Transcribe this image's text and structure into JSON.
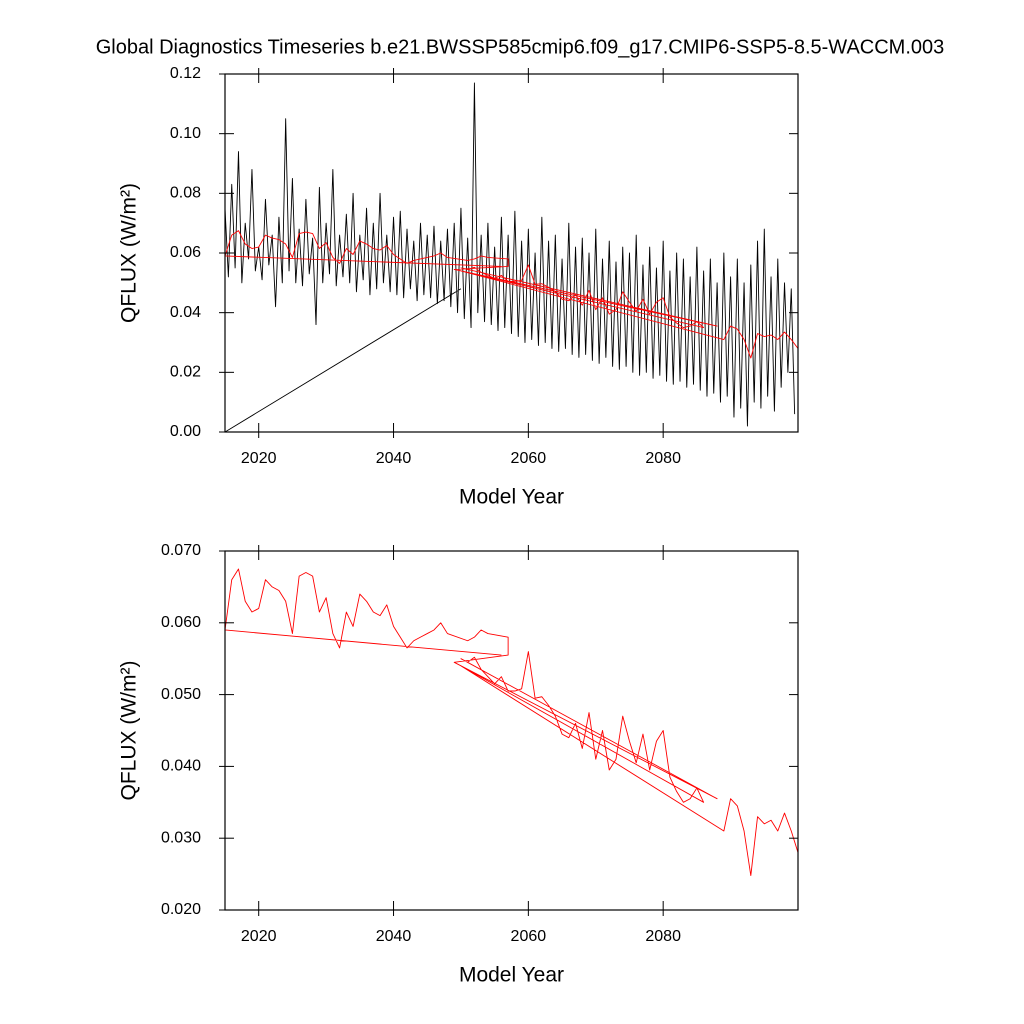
{
  "chart_data": [
    {
      "type": "line",
      "title": "Global Diagnostics Timeseries b.e21.BWSSP585cmip6.f09_g17.CMIP6-SSP5-8.5-WACCM.003",
      "y_label": "QFLUX (W/m²)",
      "x_label": "Model Year",
      "xlim": [
        2015,
        2100
      ],
      "xticks": [
        2020,
        2040,
        2060,
        2080
      ],
      "ylim": [
        0,
        0.12
      ],
      "yticks": [
        {
          "value": 0,
          "label": "0.00"
        },
        {
          "value": 0.02,
          "label": "0.02"
        },
        {
          "value": 0.04,
          "label": "0.04"
        },
        {
          "value": 0.06,
          "label": "0.06"
        },
        {
          "value": 0.08,
          "label": "0.08"
        },
        {
          "value": 0.1,
          "label": "0.10"
        },
        {
          "value": 0.12,
          "label": "0.12"
        }
      ],
      "series": [
        {
          "color": "#000000",
          "x": [
            2015,
            2050,
            2050,
            2015.0,
            2015.5,
            2016.0,
            2016.5,
            2017.0,
            2017.5,
            2018.0,
            2018.5,
            2019.0,
            2019.5,
            2020.0,
            2020.5,
            2021.0,
            2021.5,
            2022.0,
            2022.5,
            2023.0,
            2023.5,
            2024.0,
            2024.5,
            2025.0,
            2025.5,
            2026.0,
            2026.5,
            2027.0,
            2027.5,
            2028.0,
            2028.5,
            2029.0,
            2029.5,
            2030.0,
            2030.5,
            2031.0,
            2031.5,
            2032.0,
            2032.5,
            2033.0,
            2033.5,
            2034.0,
            2034.5,
            2035.0,
            2035.5,
            2036.0,
            2036.5,
            2037.0,
            2037.5,
            2038.0,
            2038.5,
            2039.0,
            2039.5,
            2040.0,
            2040.5,
            2041.0,
            2041.5,
            2042.0,
            2042.5,
            2043.0,
            2043.5,
            2044.0,
            2044.5,
            2045.0,
            2045.5,
            2046.0,
            2046.5,
            2047.0,
            2047.5,
            2048.0,
            2048.5,
            2049.0,
            2049.5,
            2050.0,
            2050.5,
            2051.0,
            2051.5,
            2052.0,
            2052.5,
            2053.0,
            2053.5,
            2054.0,
            2054.5,
            2055.0,
            2055.5,
            2056.0,
            2056.5,
            2057.0,
            2057.5,
            2058.0,
            2058.5,
            2059.0,
            2059.5,
            2060.0,
            2060.5,
            2061.0,
            2061.5,
            2062.0,
            2062.5,
            2063.0,
            2063.5,
            2064.0,
            2064.5,
            2065.0,
            2065.5,
            2066.0,
            2066.5,
            2067.0,
            2067.5,
            2068.0,
            2068.5,
            2069.0,
            2069.5,
            2070.0,
            2070.5,
            2071.0,
            2071.5,
            2072.0,
            2072.5,
            2073.0,
            2073.5,
            2074.0,
            2074.5,
            2075.0,
            2075.5,
            2076.0,
            2076.5,
            2077.0,
            2077.5,
            2078.0,
            2078.5,
            2079.0,
            2079.5,
            2080.0,
            2080.5,
            2081.0,
            2081.5,
            2082.0,
            2082.5,
            2083.0,
            2083.5,
            2084.0,
            2084.5,
            2085.0,
            2085.5,
            2086.0,
            2086.5,
            2087.0,
            2087.5,
            2088.0,
            2088.5,
            2089.0,
            2089.5,
            2090.0,
            2090.5,
            2091.0,
            2091.5,
            2092.0,
            2092.5,
            2093.0,
            2093.5,
            2094.0,
            2094.5,
            2095.0,
            2095.5,
            2096.0,
            2096.5,
            2097.0,
            2097.5,
            2098.0,
            2098.5,
            2099.0,
            2099.5
          ],
          "values": [
            0.0,
            0.048,
            null,
            0.075,
            0.052,
            0.083,
            0.055,
            0.094,
            0.05,
            0.07,
            0.058,
            0.088,
            0.054,
            0.062,
            0.051,
            0.078,
            0.056,
            0.066,
            0.042,
            0.072,
            0.05,
            0.105,
            0.054,
            0.085,
            0.05,
            0.068,
            0.049,
            0.078,
            0.053,
            0.065,
            0.036,
            0.082,
            0.05,
            0.07,
            0.053,
            0.088,
            0.049,
            0.066,
            0.052,
            0.073,
            0.05,
            0.08,
            0.047,
            0.066,
            0.051,
            0.075,
            0.046,
            0.07,
            0.048,
            0.08,
            0.05,
            0.066,
            0.047,
            0.072,
            0.046,
            0.074,
            0.045,
            0.068,
            0.048,
            0.064,
            0.044,
            0.07,
            0.046,
            0.066,
            0.045,
            0.069,
            0.043,
            0.064,
            0.044,
            0.068,
            0.042,
            0.07,
            0.04,
            0.075,
            0.038,
            0.065,
            0.035,
            0.117,
            0.04,
            0.066,
            0.037,
            0.07,
            0.036,
            0.062,
            0.034,
            0.072,
            0.035,
            0.066,
            0.033,
            0.074,
            0.032,
            0.064,
            0.03,
            0.068,
            0.031,
            0.06,
            0.029,
            0.072,
            0.03,
            0.064,
            0.028,
            0.066,
            0.027,
            0.058,
            0.028,
            0.07,
            0.026,
            0.062,
            0.025,
            0.065,
            0.026,
            0.06,
            0.024,
            0.068,
            0.023,
            0.058,
            0.025,
            0.064,
            0.022,
            0.057,
            0.021,
            0.062,
            0.022,
            0.06,
            0.02,
            0.066,
            0.019,
            0.056,
            0.02,
            0.062,
            0.018,
            0.055,
            0.019,
            0.064,
            0.017,
            0.054,
            0.016,
            0.06,
            0.017,
            0.058,
            0.015,
            0.052,
            0.016,
            0.062,
            0.014,
            0.054,
            0.012,
            0.058,
            0.013,
            0.05,
            0.01,
            0.06,
            0.012,
            0.052,
            0.005,
            0.058,
            0.008,
            0.05,
            0.002,
            0.056,
            0.01,
            0.064,
            0.008,
            0.068,
            0.012,
            0.052,
            0.007,
            0.058,
            0.015,
            0.05,
            0.02,
            0.048,
            0.006
          ]
        },
        {
          "color": "#ff0000",
          "x": [
            2056,
            2015,
            2016,
            2017,
            2018,
            2019,
            2020,
            2021,
            2022,
            2023,
            2024,
            2025,
            2026,
            2027,
            2028,
            2029,
            2030,
            2031,
            2032,
            2033,
            2034,
            2035,
            2036,
            2037,
            2038,
            2039,
            2040,
            2041,
            2042,
            2043,
            2044,
            2045,
            2046,
            2047,
            2048,
            2051,
            2052,
            2053,
            2054,
            2057,
            2057,
            2049,
            2088,
            2050,
            2051,
            2052,
            2053,
            2054,
            2055,
            2056,
            2057,
            2058,
            2059,
            2060,
            2061,
            2062,
            2063,
            2064,
            2065,
            2066,
            2067,
            2068,
            2069,
            2070,
            2071,
            2072,
            2073,
            2074,
            2075,
            2076,
            2077,
            2078,
            2079,
            2080,
            2081,
            2082,
            2083,
            2084,
            2085,
            2086,
            2050,
            2089,
            2090,
            2091,
            2092,
            2093,
            2094,
            2095,
            2096,
            2097,
            2098,
            2099,
            2100
          ],
          "values": [
            0.0555,
            0.059,
            0.066,
            0.0675,
            0.063,
            0.0615,
            0.062,
            0.066,
            0.065,
            0.0645,
            0.063,
            0.0585,
            0.0665,
            0.067,
            0.0665,
            0.0615,
            0.0635,
            0.0585,
            0.0565,
            0.0615,
            0.0595,
            0.064,
            0.063,
            0.0615,
            0.061,
            0.0625,
            0.0595,
            0.058,
            0.0565,
            0.0575,
            0.058,
            0.0585,
            0.059,
            0.06,
            0.0585,
            0.0575,
            0.058,
            0.059,
            0.0585,
            0.058,
            0.0555,
            0.0545,
            0.0355,
            0.055,
            0.0545,
            0.0552,
            0.0535,
            0.0525,
            0.0515,
            0.0525,
            0.0505,
            0.0505,
            0.0508,
            0.056,
            0.0495,
            0.0497,
            0.0485,
            0.047,
            0.0445,
            0.044,
            0.046,
            0.0425,
            0.0475,
            0.041,
            0.045,
            0.0395,
            0.041,
            0.047,
            0.0435,
            0.0405,
            0.0445,
            0.0395,
            0.0435,
            0.045,
            0.0385,
            0.0365,
            0.035,
            0.0355,
            0.037,
            0.035,
            0.054,
            0.031,
            0.0355,
            0.0345,
            0.031,
            0.0248,
            0.033,
            0.032,
            0.0325,
            0.031,
            0.0335,
            0.031,
            0.028
          ]
        }
      ]
    },
    {
      "type": "line",
      "y_label": "QFLUX (W/m²)",
      "x_label": "Model Year",
      "xlim": [
        2015,
        2100
      ],
      "xticks": [
        2020,
        2040,
        2060,
        2080
      ],
      "ylim": [
        0.02,
        0.07
      ],
      "yticks": [
        {
          "value": 0.02,
          "label": "0.020"
        },
        {
          "value": 0.03,
          "label": "0.030"
        },
        {
          "value": 0.04,
          "label": "0.040"
        },
        {
          "value": 0.05,
          "label": "0.050"
        },
        {
          "value": 0.06,
          "label": "0.060"
        },
        {
          "value": 0.07,
          "label": "0.070"
        }
      ],
      "series": [
        {
          "color": "#ff0000",
          "x": [
            2056,
            2015,
            2016,
            2017,
            2018,
            2019,
            2020,
            2021,
            2022,
            2023,
            2024,
            2025,
            2026,
            2027,
            2028,
            2029,
            2030,
            2031,
            2032,
            2033,
            2034,
            2035,
            2036,
            2037,
            2038,
            2039,
            2040,
            2041,
            2042,
            2043,
            2044,
            2045,
            2046,
            2047,
            2048,
            2051,
            2052,
            2053,
            2054,
            2057,
            2057,
            2049,
            2088,
            2050,
            2051,
            2052,
            2053,
            2054,
            2055,
            2056,
            2057,
            2058,
            2059,
            2060,
            2061,
            2062,
            2063,
            2064,
            2065,
            2066,
            2067,
            2068,
            2069,
            2070,
            2071,
            2072,
            2073,
            2074,
            2075,
            2076,
            2077,
            2078,
            2079,
            2080,
            2081,
            2082,
            2083,
            2084,
            2085,
            2086,
            2050,
            2089,
            2090,
            2091,
            2092,
            2093,
            2094,
            2095,
            2096,
            2097,
            2098,
            2099,
            2100
          ],
          "values": [
            0.0555,
            0.059,
            0.066,
            0.0675,
            0.063,
            0.0615,
            0.062,
            0.066,
            0.065,
            0.0645,
            0.063,
            0.0585,
            0.0665,
            0.067,
            0.0665,
            0.0615,
            0.0635,
            0.0585,
            0.0565,
            0.0615,
            0.0595,
            0.064,
            0.063,
            0.0615,
            0.061,
            0.0625,
            0.0595,
            0.058,
            0.0565,
            0.0575,
            0.058,
            0.0585,
            0.059,
            0.06,
            0.0585,
            0.0575,
            0.058,
            0.059,
            0.0585,
            0.058,
            0.0555,
            0.0545,
            0.0355,
            0.055,
            0.0545,
            0.0552,
            0.0535,
            0.0525,
            0.0515,
            0.0525,
            0.0505,
            0.0505,
            0.0508,
            0.056,
            0.0495,
            0.0497,
            0.0485,
            0.047,
            0.0445,
            0.044,
            0.046,
            0.0425,
            0.0475,
            0.041,
            0.045,
            0.0395,
            0.041,
            0.047,
            0.0435,
            0.0405,
            0.0445,
            0.0395,
            0.0435,
            0.045,
            0.0385,
            0.0365,
            0.035,
            0.0355,
            0.037,
            0.035,
            0.054,
            0.031,
            0.0355,
            0.0345,
            0.031,
            0.0248,
            0.033,
            0.032,
            0.0325,
            0.031,
            0.0335,
            0.031,
            0.028
          ]
        }
      ]
    }
  ]
}
